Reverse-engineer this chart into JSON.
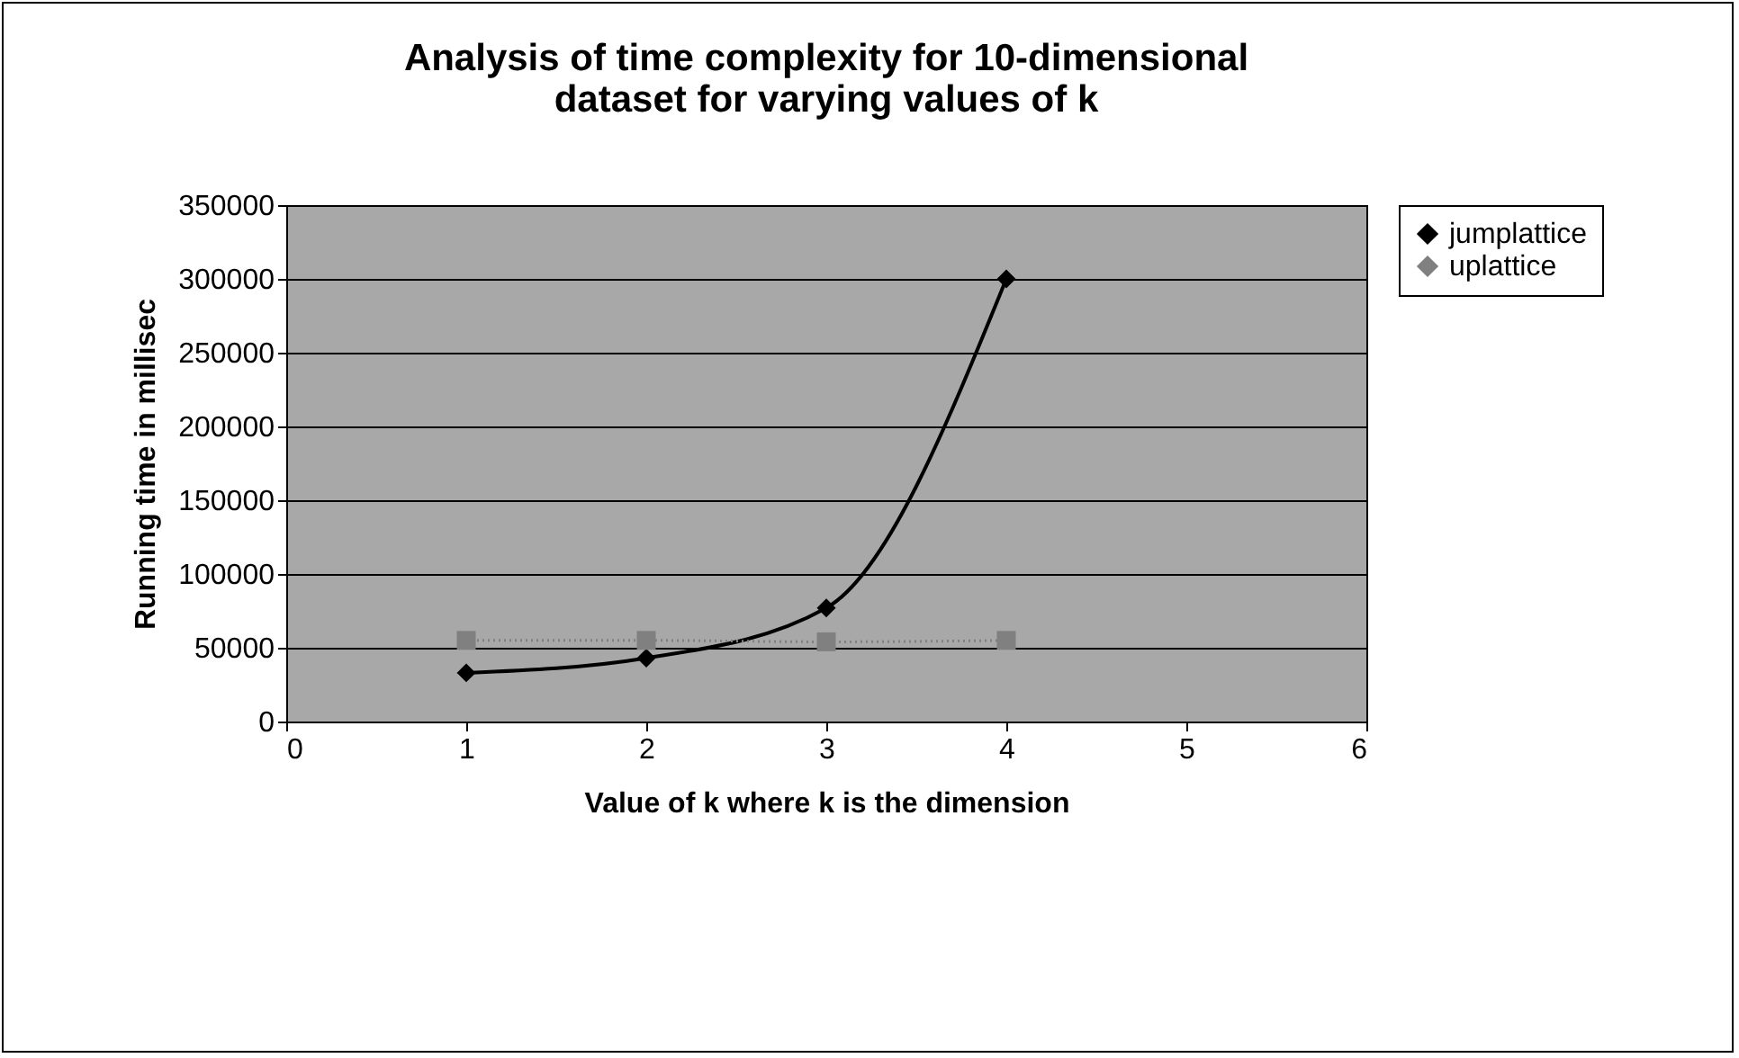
{
  "chart_data": {
    "type": "line",
    "title": "Analysis of time complexity for 10-dimensional dataset for varying values of k",
    "xlabel": "Value of k where k is the dimension",
    "ylabel": "Running time in millisec",
    "x": [
      1,
      2,
      3,
      4
    ],
    "xlim": [
      0,
      6
    ],
    "xticks": [
      0,
      1,
      2,
      3,
      4,
      5,
      6
    ],
    "ylim": [
      0,
      350000
    ],
    "yticks": [
      0,
      50000,
      100000,
      150000,
      200000,
      250000,
      300000,
      350000
    ],
    "grid": "y",
    "legend": "right",
    "series": [
      {
        "name": "jumplattice",
        "color": "#000000",
        "values": [
          33000,
          43000,
          77000,
          300000
        ],
        "marker": "diamond",
        "line_style": "solid"
      },
      {
        "name": "uplattice",
        "color": "#808080",
        "values": [
          55000,
          55000,
          54000,
          55000
        ],
        "marker": "square",
        "line_style": "dotted"
      }
    ]
  }
}
